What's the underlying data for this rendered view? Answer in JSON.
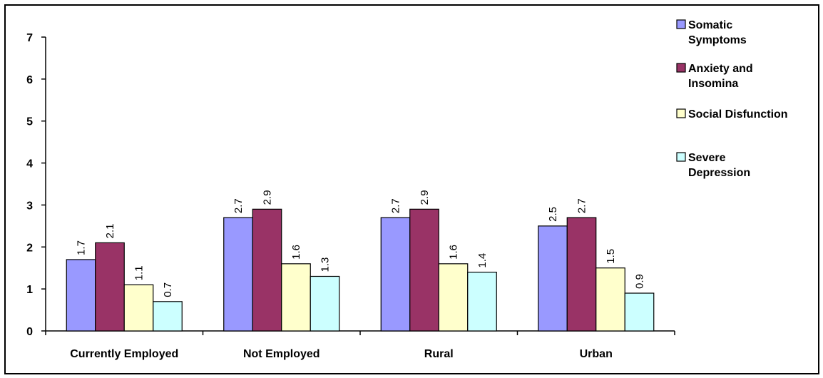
{
  "chart_data": {
    "type": "bar",
    "title": "",
    "xlabel": "",
    "ylabel": "",
    "ylim": [
      0,
      7
    ],
    "yticks": [
      0,
      1,
      2,
      3,
      4,
      5,
      6,
      7
    ],
    "grid": false,
    "legend_position": "right",
    "categories": [
      "Currently Employed",
      "Not Employed",
      "Rural",
      "Urban"
    ],
    "series": [
      {
        "name": "Somatic Symptoms",
        "legend_lines": [
          "Somatic",
          "Symptoms"
        ],
        "color": "#9999ff",
        "values": [
          1.7,
          2.7,
          2.7,
          2.5
        ]
      },
      {
        "name": "Anxiety and Insomina",
        "legend_lines": [
          "Anxiety and",
          "Insomina"
        ],
        "color": "#993366",
        "values": [
          2.1,
          2.9,
          2.9,
          2.7
        ]
      },
      {
        "name": "Social Disfunction",
        "legend_lines": [
          "Social Disfunction"
        ],
        "color": "#ffffcc",
        "values": [
          1.1,
          1.6,
          1.6,
          1.5
        ]
      },
      {
        "name": "Severe Depression",
        "legend_lines": [
          "Severe",
          "Depression"
        ],
        "color": "#ccffff",
        "values": [
          0.7,
          1.3,
          1.4,
          0.9
        ]
      }
    ]
  }
}
